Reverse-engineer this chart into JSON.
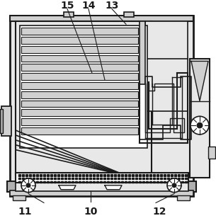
{
  "fig_width": 3.05,
  "fig_height": 3.15,
  "dpi": 100,
  "bg_color": "#ffffff",
  "line_color": "#1a1a1a",
  "gray_light": "#e8e8e8",
  "gray_mid": "#d0d0d0",
  "gray_dark": "#b0b0b0",
  "gray_fill": "#c8c8c8"
}
